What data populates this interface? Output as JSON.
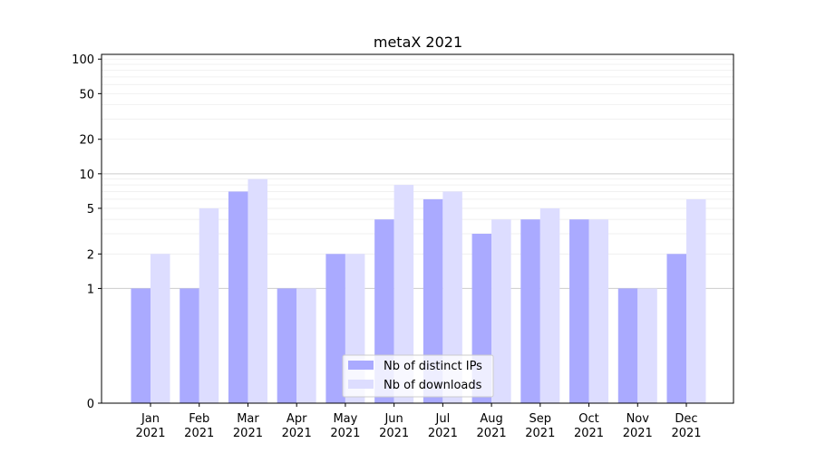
{
  "chart_data": {
    "type": "bar",
    "title": "metaX 2021",
    "xlabel": "",
    "ylabel": "",
    "yscale": "symlog",
    "ylim": [
      0,
      110
    ],
    "yticks": [
      0,
      1,
      2,
      5,
      10,
      20,
      50,
      100
    ],
    "grid": "horizontal",
    "legend": "lower-center",
    "categories": [
      {
        "month": "Jan",
        "year": "2021"
      },
      {
        "month": "Feb",
        "year": "2021"
      },
      {
        "month": "Mar",
        "year": "2021"
      },
      {
        "month": "Apr",
        "year": "2021"
      },
      {
        "month": "May",
        "year": "2021"
      },
      {
        "month": "Jun",
        "year": "2021"
      },
      {
        "month": "Jul",
        "year": "2021"
      },
      {
        "month": "Aug",
        "year": "2021"
      },
      {
        "month": "Sep",
        "year": "2021"
      },
      {
        "month": "Oct",
        "year": "2021"
      },
      {
        "month": "Nov",
        "year": "2021"
      },
      {
        "month": "Dec",
        "year": "2021"
      }
    ],
    "series": [
      {
        "name": "Nb of distinct IPs",
        "color": "#aaaaff",
        "values": [
          1,
          1,
          7,
          1,
          2,
          4,
          6,
          3,
          4,
          4,
          1,
          2
        ]
      },
      {
        "name": "Nb of downloads",
        "color": "#ddddff",
        "values": [
          2,
          5,
          9,
          1,
          2,
          8,
          7,
          4,
          5,
          4,
          1,
          6
        ]
      }
    ]
  }
}
